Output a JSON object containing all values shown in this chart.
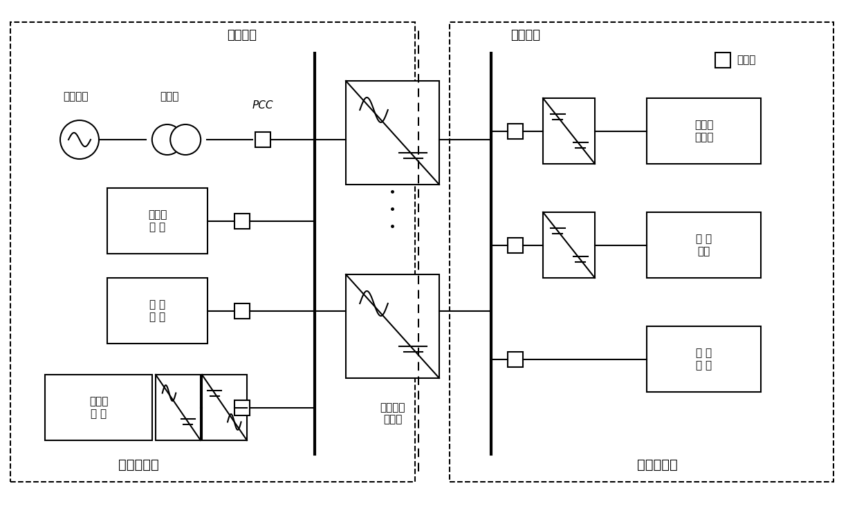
{
  "bg_color": "#ffffff",
  "line_color": "#000000",
  "title": "",
  "figsize": [
    12.39,
    7.32
  ],
  "dpi": 100,
  "labels": {
    "ac_bus": "交流母线",
    "dc_bus": "直流母线",
    "ac_microgrid": "交流微电网",
    "dc_microgrid": "直流微电网",
    "transformer": "变压器",
    "pcc": "PCC",
    "public_grid": "公共电网",
    "diesel_gen": "柴油发\n电 机",
    "ac_load": "交 流\n负 荷",
    "wind_gen": "风力发\n电 机",
    "pv_unit": "光伏发\n电单元",
    "storage": "储 能\n装置",
    "dc_load": "直 流\n负 荷",
    "bidirectional": "双向功率\n变换器",
    "circuit_breaker": "断路器"
  }
}
